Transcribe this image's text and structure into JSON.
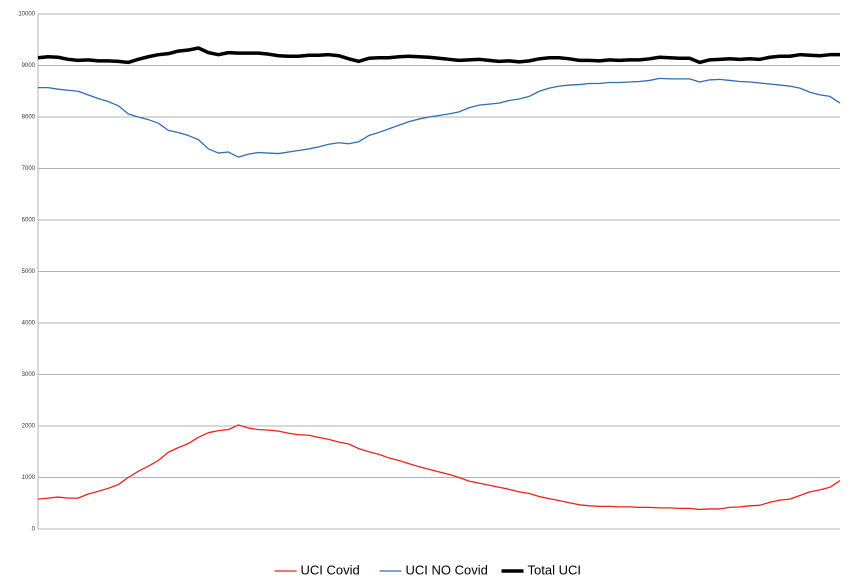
{
  "chart_data": {
    "type": "line",
    "categories": [
      null,
      null,
      null,
      null,
      null,
      null,
      null,
      null,
      null,
      null,
      null,
      null,
      null,
      null,
      null,
      null,
      null,
      null,
      null,
      null,
      null,
      null,
      null,
      null,
      null,
      null,
      null,
      null,
      null,
      null,
      null,
      null,
      null,
      null,
      null,
      null,
      null,
      null,
      null,
      null,
      null,
      null,
      null,
      null,
      null,
      null,
      null,
      null,
      null,
      null,
      null,
      null,
      null,
      null,
      null,
      null,
      null,
      null,
      null,
      null,
      null,
      null,
      null,
      null,
      null,
      null,
      null,
      null,
      null,
      null,
      null,
      null,
      null,
      null,
      null,
      null,
      null,
      null,
      null,
      null,
      null
    ],
    "series": [
      {
        "name": "UCI Covid",
        "color": "#e8231d",
        "width": 1.3,
        "values": [
          580,
          600,
          620,
          600,
          600,
          680,
          730,
          790,
          860,
          1000,
          1120,
          1220,
          1330,
          1490,
          1580,
          1660,
          1780,
          1870,
          1910,
          1930,
          2020,
          1960,
          1930,
          1920,
          1900,
          1860,
          1830,
          1820,
          1780,
          1740,
          1690,
          1650,
          1560,
          1500,
          1450,
          1380,
          1330,
          1270,
          1210,
          1160,
          1110,
          1060,
          1000,
          930,
          890,
          850,
          810,
          770,
          720,
          690,
          630,
          590,
          550,
          510,
          470,
          450,
          440,
          440,
          430,
          430,
          420,
          420,
          410,
          410,
          400,
          400,
          380,
          390,
          390,
          420,
          430,
          450,
          460,
          520,
          560,
          580,
          650,
          720,
          760,
          810,
          940
        ]
      },
      {
        "name": "UCI NO Covid",
        "color": "#2f6eb5",
        "width": 1.3,
        "values": [
          8570,
          8570,
          8540,
          8520,
          8500,
          8430,
          8360,
          8300,
          8220,
          8060,
          8000,
          7950,
          7880,
          7740,
          7700,
          7640,
          7560,
          7380,
          7300,
          7320,
          7220,
          7280,
          7310,
          7300,
          7290,
          7320,
          7350,
          7380,
          7420,
          7470,
          7500,
          7480,
          7520,
          7640,
          7700,
          7770,
          7840,
          7910,
          7960,
          8000,
          8030,
          8060,
          8100,
          8180,
          8230,
          8250,
          8270,
          8320,
          8350,
          8400,
          8500,
          8560,
          8600,
          8620,
          8630,
          8650,
          8650,
          8670,
          8670,
          8680,
          8690,
          8710,
          8750,
          8740,
          8740,
          8740,
          8680,
          8720,
          8730,
          8710,
          8690,
          8680,
          8660,
          8640,
          8620,
          8600,
          8560,
          8480,
          8430,
          8400,
          8270
        ]
      },
      {
        "name": "Total UCI",
        "color": "#000000",
        "width": 3.5,
        "values": [
          9150,
          9170,
          9160,
          9120,
          9100,
          9110,
          9090,
          9090,
          9080,
          9060,
          9120,
          9170,
          9210,
          9230,
          9280,
          9300,
          9340,
          9250,
          9210,
          9250,
          9240,
          9240,
          9240,
          9220,
          9190,
          9180,
          9180,
          9200,
          9200,
          9210,
          9190,
          9130,
          9080,
          9140,
          9150,
          9150,
          9170,
          9180,
          9170,
          9160,
          9140,
          9120,
          9100,
          9110,
          9120,
          9100,
          9080,
          9090,
          9070,
          9090,
          9130,
          9150,
          9150,
          9130,
          9100,
          9100,
          9090,
          9110,
          9100,
          9110,
          9110,
          9130,
          9160,
          9150,
          9140,
          9140,
          9060,
          9110,
          9120,
          9130,
          9120,
          9130,
          9120,
          9160,
          9180,
          9180,
          9210,
          9200,
          9190,
          9210,
          9210
        ]
      }
    ],
    "ylim": [
      0,
      10000
    ],
    "yticks": [
      0,
      1000,
      2000,
      3000,
      4000,
      5000,
      6000,
      7000,
      8000,
      9000,
      10000
    ],
    "grid": true,
    "legend": "bottom"
  }
}
